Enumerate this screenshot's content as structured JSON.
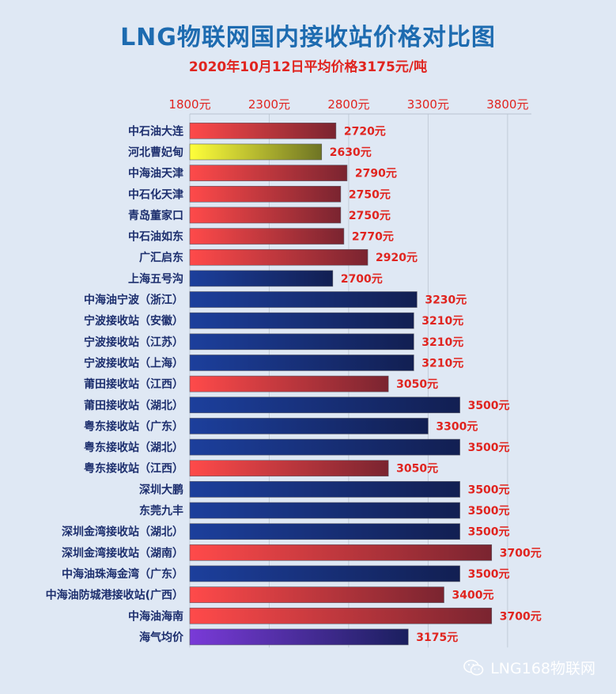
{
  "chart_data": {
    "type": "bar",
    "orientation": "horizontal",
    "title": "LNG物联网国内接收站价格对比图",
    "subtitle": "2020年10月12日平均价格3175元/吨",
    "x_ticks": [
      "1800元",
      "2300元",
      "2800元",
      "3300元",
      "3800元"
    ],
    "x_tick_values": [
      1800,
      2300,
      2800,
      3300,
      3800
    ],
    "xlim": [
      1800,
      3950
    ],
    "grid": true,
    "categories": [
      "中石油大连",
      "河北曹妃甸",
      "中海油天津",
      "中石化天津",
      "青岛董家口",
      "中石油如东",
      "广汇启东",
      "上海五号沟",
      "中海油宁波（浙江）",
      "宁波接收站（安徽）",
      "宁波接收站（江苏）",
      "宁波接收站（上海）",
      "莆田接收站（江西）",
      "莆田接收站（湖北）",
      "粤东接收站（广东）",
      "粤东接收站（湖北）",
      "粤东接收站（江西）",
      "深圳大鹏",
      "东莞九丰",
      "深圳金湾接收站（湖北）",
      "深圳金湾接收站（湖南）",
      "中海油珠海金湾（广东）",
      "中海油防城港接收站(广西）",
      "中海油海南",
      "海气均价"
    ],
    "values": [
      2720,
      2630,
      2790,
      2750,
      2750,
      2770,
      2920,
      2700,
      3230,
      3210,
      3210,
      3210,
      3050,
      3500,
      3300,
      3500,
      3050,
      3500,
      3500,
      3500,
      3700,
      3500,
      3400,
      3700,
      3175
    ],
    "value_labels": [
      "2720元",
      "2630元",
      "2790元",
      "2750元",
      "2750元",
      "2770元",
      "2920元",
      "2700元",
      "3230元",
      "3210元",
      "3210元",
      "3210元",
      "3050元",
      "3500元",
      "3300元",
      "3500元",
      "3050元",
      "3500元",
      "3500元",
      "3500元",
      "3700元",
      "3500元",
      "3400元",
      "3700元",
      "3175元"
    ],
    "bar_styles": [
      "red",
      "yellow",
      "red",
      "red",
      "red",
      "red",
      "red",
      "blue",
      "blue",
      "blue",
      "blue",
      "blue",
      "red",
      "blue",
      "blue",
      "blue",
      "red",
      "blue",
      "blue",
      "blue",
      "red",
      "blue",
      "red",
      "red",
      "purple"
    ],
    "colors": {
      "red": [
        "#ff4a4a",
        "#7a2430"
      ],
      "yellow": [
        "#ffff3a",
        "#6e7424"
      ],
      "blue": [
        "#1c3f9c",
        "#121f52"
      ],
      "purple": [
        "#7a3ad8",
        "#1a1f5e"
      ],
      "label_red": "#e0241f",
      "axis_text": "#e0241f",
      "category_text": "#1d2f6e",
      "title": "#1d6bb0"
    }
  },
  "watermark": {
    "text": "LNG168物联网",
    "icon": "wechat-icon"
  }
}
